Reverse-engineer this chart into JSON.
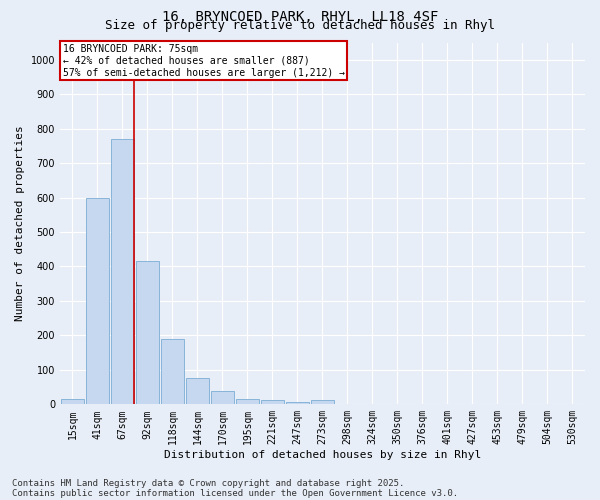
{
  "title_line1": "16, BRYNCOED PARK, RHYL, LL18 4SF",
  "title_line2": "Size of property relative to detached houses in Rhyl",
  "xlabel": "Distribution of detached houses by size in Rhyl",
  "ylabel": "Number of detached properties",
  "bar_color": "#c5d8f0",
  "bar_edge_color": "#7aadd4",
  "background_color": "#e8eef7",
  "categories": [
    "15sqm",
    "41sqm",
    "67sqm",
    "92sqm",
    "118sqm",
    "144sqm",
    "170sqm",
    "195sqm",
    "221sqm",
    "247sqm",
    "273sqm",
    "298sqm",
    "324sqm",
    "350sqm",
    "376sqm",
    "401sqm",
    "427sqm",
    "453sqm",
    "479sqm",
    "504sqm",
    "530sqm"
  ],
  "values": [
    15,
    600,
    770,
    415,
    190,
    75,
    38,
    15,
    12,
    8,
    12,
    2,
    0,
    0,
    0,
    0,
    0,
    0,
    0,
    0,
    0
  ],
  "ylim": [
    0,
    1050
  ],
  "yticks": [
    0,
    100,
    200,
    300,
    400,
    500,
    600,
    700,
    800,
    900,
    1000
  ],
  "property_line_x": 2.45,
  "annotation_title": "16 BRYNCOED PARK: 75sqm",
  "annotation_line1": "← 42% of detached houses are smaller (887)",
  "annotation_line2": "57% of semi-detached houses are larger (1,212) →",
  "annotation_box_color": "#ffffff",
  "annotation_box_edge": "#cc0000",
  "vline_color": "#cc0000",
  "footer_line1": "Contains HM Land Registry data © Crown copyright and database right 2025.",
  "footer_line2": "Contains public sector information licensed under the Open Government Licence v3.0.",
  "grid_color": "#ffffff",
  "title_fontsize": 10,
  "subtitle_fontsize": 9,
  "axis_label_fontsize": 8,
  "tick_fontsize": 7,
  "annotation_fontsize": 7,
  "footer_fontsize": 6.5
}
